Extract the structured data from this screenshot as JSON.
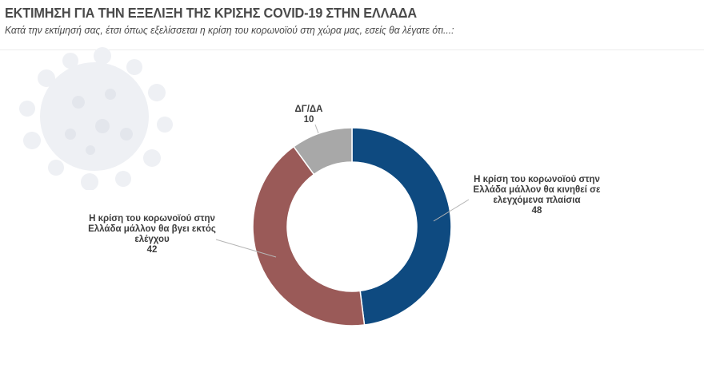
{
  "header": {
    "title": "ΕΚΤΙΜΗΣΗ ΓΙΑ ΤΗΝ ΕΞΕΛΙΞΗ ΤΗΣ ΚΡΙΣΗΣ COVID-19 ΣΤΗΝ ΕΛΛΑΔΑ",
    "subtitle": "Κατά την εκτίμησή σας, έτσι όπως εξελίσσεται η κρίση του κορωνοϊού στη χώρα μας, εσείς θα λέγατε ότι...:"
  },
  "labels": {
    "blue": {
      "line1": "Η κρίση του κορωνοϊού στην",
      "line2": "Ελλάδα μάλλον θα κινηθεί σε",
      "line3": "ελεγχόμενα πλαίσια",
      "value": "48"
    },
    "red": {
      "line1": "Η κρίση του κορωνοϊού στην",
      "line2": "Ελλάδα μάλλον θα βγει εκτός",
      "line3": "ελέγχου",
      "value": "42"
    },
    "gray": {
      "line1": "ΔΓ/ΔΑ",
      "value": "10"
    }
  },
  "colors": {
    "blue": "#0e4a80",
    "red": "#9a5a58",
    "gray": "#a8a8a8"
  },
  "chart_data": {
    "type": "pie",
    "subtype": "donut",
    "title": "ΕΚΤΙΜΗΣΗ ΓΙΑ ΤΗΝ ΕΞΕΛΙΞΗ ΤΗΣ ΚΡΙΣΗΣ COVID-19 ΣΤΗΝ ΕΛΛΑΔΑ",
    "subtitle": "Κατά την εκτίμησή σας, έτσι όπως εξελίσσεται η κρίση του κορωνοϊού στη χώρα μας, εσείς θα λέγατε ότι...:",
    "categories": [
      "Η κρίση του κορωνοϊού στην Ελλάδα μάλλον θα κινηθεί σε ελεγχόμενα πλαίσια",
      "Η κρίση του κορωνοϊού στην Ελλάδα μάλλον θα βγει εκτός ελέγχου",
      "ΔΓ/ΔΑ"
    ],
    "values": [
      48,
      42,
      10
    ],
    "colors": [
      "#0e4a80",
      "#9a5a58",
      "#a8a8a8"
    ],
    "start_angle": "12 o'clock, clockwise",
    "legend": "none (data labels with leader lines)"
  }
}
